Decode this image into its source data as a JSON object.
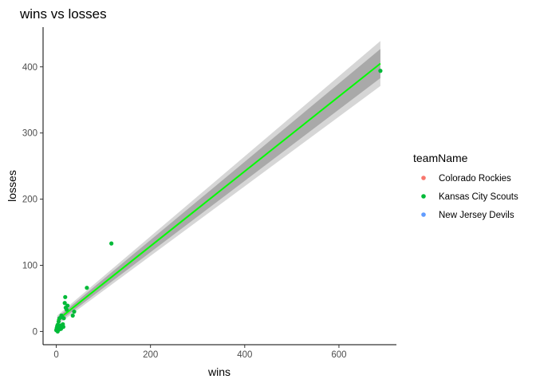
{
  "chart_data": {
    "type": "scatter",
    "title": "wins vs losses",
    "xlabel": "wins",
    "ylabel": "losses",
    "xlim": [
      -28,
      722
    ],
    "ylim": [
      -20,
      460
    ],
    "x_ticks": [
      0,
      200,
      400,
      600
    ],
    "y_ticks": [
      0,
      100,
      200,
      300,
      400
    ],
    "grid": false,
    "legend": {
      "title": "teamName",
      "position": "right",
      "entries": [
        {
          "name": "Colorado Rockies",
          "color": "#F8766D"
        },
        {
          "name": "Kansas City Scouts",
          "color": "#00BA38"
        },
        {
          "name": "New Jersey Devils",
          "color": "#619CFF"
        }
      ]
    },
    "point_color": "#00BA38",
    "points": [
      {
        "x": 0,
        "y": 2
      },
      {
        "x": 1,
        "y": 5
      },
      {
        "x": 2,
        "y": 8
      },
      {
        "x": 3,
        "y": 0
      },
      {
        "x": 3,
        "y": 10
      },
      {
        "x": 4,
        "y": 4
      },
      {
        "x": 5,
        "y": 15
      },
      {
        "x": 5,
        "y": 6
      },
      {
        "x": 6,
        "y": 3
      },
      {
        "x": 7,
        "y": 20
      },
      {
        "x": 8,
        "y": 7
      },
      {
        "x": 9,
        "y": 9
      },
      {
        "x": 10,
        "y": 4
      },
      {
        "x": 11,
        "y": 24
      },
      {
        "x": 12,
        "y": 22
      },
      {
        "x": 14,
        "y": 11
      },
      {
        "x": 15,
        "y": 7
      },
      {
        "x": 16,
        "y": 20
      },
      {
        "x": 18,
        "y": 43
      },
      {
        "x": 19,
        "y": 52
      },
      {
        "x": 20,
        "y": 36
      },
      {
        "x": 22,
        "y": 33
      },
      {
        "x": 24,
        "y": 39
      },
      {
        "x": 35,
        "y": 24
      },
      {
        "x": 38,
        "y": 30
      },
      {
        "x": 65,
        "y": 66
      },
      {
        "x": 117,
        "y": 133
      },
      {
        "x": 688,
        "y": 394
      }
    ],
    "fit": {
      "method": "linear",
      "color": "#00FF00",
      "x_start": 2,
      "y_start": 17,
      "x_end": 688,
      "y_end": 405
    },
    "band_inner": {
      "color": "#999999",
      "opacity": 0.75,
      "half_width_start": 4,
      "half_width_end": 22
    },
    "band_outer": {
      "color": "#cccccc",
      "opacity": 0.8,
      "half_width_start": 7,
      "half_width_end": 34
    }
  }
}
